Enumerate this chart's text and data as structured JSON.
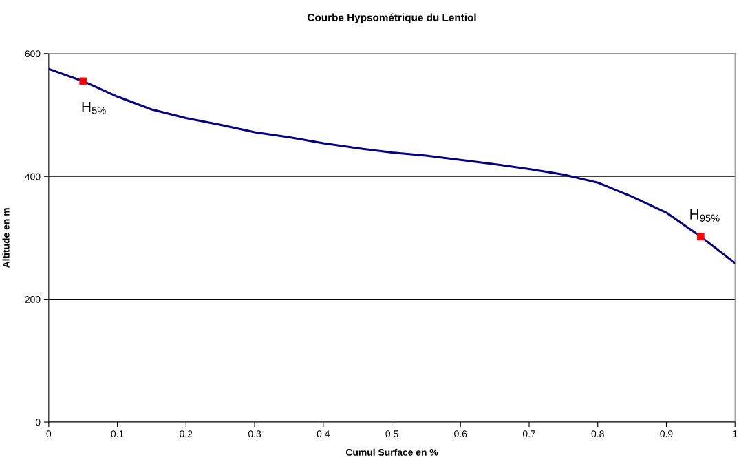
{
  "chart_data": {
    "type": "line",
    "title": "Courbe Hypsométrique du Lentiol",
    "xlabel": "Cumul Surface en %",
    "ylabel": "Altitude en m",
    "series": [
      {
        "color": "#000080",
        "marker": "none",
        "x": [
          0,
          0.05,
          0.1,
          0.15,
          0.2,
          0.25,
          0.3,
          0.35,
          0.4,
          0.45,
          0.5,
          0.55,
          0.6,
          0.65,
          0.7,
          0.75,
          0.8,
          0.85,
          0.9,
          0.95,
          1
        ],
        "values": [
          575,
          555,
          530,
          509,
          495,
          484,
          472,
          464,
          454,
          446,
          439,
          434,
          427,
          420,
          412,
          403,
          390,
          367,
          341,
          302,
          259
        ]
      },
      {
        "type": "scatter",
        "color": "#ff0000",
        "marker": "square",
        "x": [
          0.05,
          0.95
        ],
        "values": [
          555,
          302
        ]
      }
    ],
    "annotations": [
      {
        "text": "H$_{5%}$",
        "x": 0.05,
        "y": 555
      },
      {
        "text": "H$_{95%}$",
        "x": 0.95,
        "y": 302
      }
    ],
    "xlim": [
      0,
      1
    ],
    "xticks": [
      0,
      0.1,
      0.2,
      0.3,
      0.4,
      0.5,
      0.6,
      0.7,
      0.8,
      0.9,
      1
    ],
    "ylim": [
      0,
      600
    ],
    "yticks": [
      0,
      200,
      400,
      600
    ],
    "grid": "y"
  }
}
